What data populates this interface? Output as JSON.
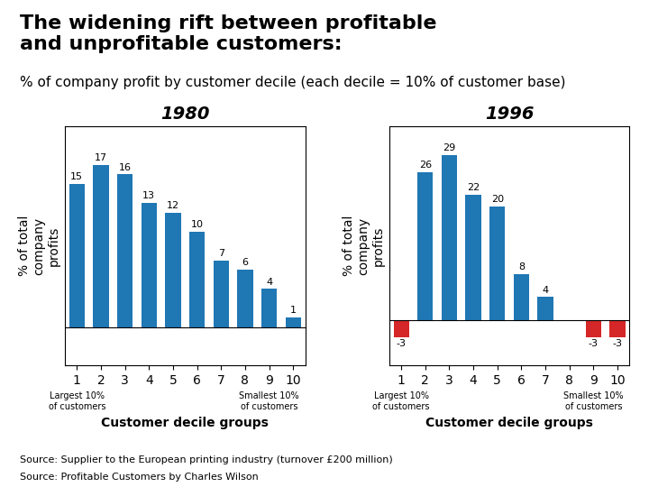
{
  "title": "The widening rift between profitable\nand unprofitable customers:",
  "subtitle": "% of company profit by customer decile (each decile = 10% of customer base)",
  "annotations": [
    "Source: Supplier to the European printing industry (turnover £200 million)",
    "Source: Profitable Customers by Charles Wilson"
  ],
  "chart_data": [
    {
      "type": "bar",
      "title": "1980",
      "categories": [
        "1",
        "2",
        "3",
        "4",
        "5",
        "6",
        "7",
        "8",
        "9",
        "10"
      ],
      "values": [
        15,
        17,
        16,
        13,
        12,
        10,
        7,
        6,
        4,
        1
      ],
      "value_labels": [
        "15",
        "17",
        "16",
        "13",
        "12",
        "10",
        "7",
        "6",
        "4",
        "1"
      ],
      "colors": [
        "#1f77b4",
        "#1f77b4",
        "#1f77b4",
        "#1f77b4",
        "#1f77b4",
        "#1f77b4",
        "#1f77b4",
        "#1f77b4",
        "#1f77b4",
        "#1f77b4"
      ],
      "x_label": "Customer decile groups",
      "y_label": "% of total\ncompany\nprofits",
      "ylim": [
        -4,
        21
      ],
      "tick_labels": "x",
      "grid": false,
      "data_labels": true,
      "annotations": [
        {
          "text": "Largest 10%\nof customers",
          "x": "1"
        },
        {
          "text": "Smallest 10%\nof customers",
          "x": "9"
        }
      ]
    },
    {
      "type": "bar",
      "title": "1996",
      "categories": [
        "1",
        "2",
        "3",
        "4",
        "5",
        "6",
        "7",
        "8",
        "9",
        "10"
      ],
      "values": [
        -3,
        26,
        29,
        22,
        20,
        8,
        4,
        0,
        -3,
        -3
      ],
      "value_labels": [
        "-3",
        "26",
        "29",
        "22",
        "20",
        "8",
        "4",
        null,
        "-3",
        "-3"
      ],
      "colors": [
        "#d62728",
        "#1f77b4",
        "#1f77b4",
        "#1f77b4",
        "#1f77b4",
        "#1f77b4",
        "#1f77b4",
        "#1f77b4",
        "#d62728",
        "#d62728"
      ],
      "x_label": "Customer decile groups",
      "y_label": "% of total\ncompany\nprofits",
      "ylim": [
        -8,
        34
      ],
      "tick_labels": "x",
      "grid": false,
      "data_labels": true,
      "annotations": [
        {
          "text": "Largest 10%\nof customers",
          "x": "1"
        },
        {
          "text": "Smallest 10%\nof customers",
          "x": "9"
        }
      ]
    }
  ]
}
